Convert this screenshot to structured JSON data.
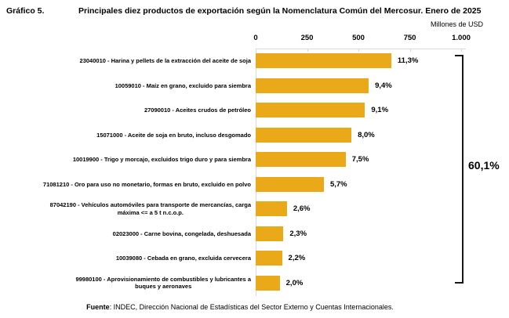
{
  "header": {
    "graphic_label": "Gráfico 5.",
    "title": "Principales diez productos de exportación según la Nomenclatura Común del Mercosur. Enero de 2025"
  },
  "axis": {
    "unit_label": "Millones de USD",
    "ticks": [
      "0",
      "250",
      "500",
      "750",
      "1.000"
    ]
  },
  "chart_data": {
    "type": "bar",
    "orientation": "horizontal",
    "title": "Principales diez productos de exportación según la Nomenclatura Común del Mercosur. Enero de 2025",
    "xlabel": "Millones de USD",
    "xlim": [
      0,
      1000
    ],
    "x_ticks": [
      0,
      250,
      500,
      750,
      1000
    ],
    "grid": false,
    "bars": [
      {
        "label_lines": [
          "23040010 - Harina y pellets de la extracción del aceite de soja"
        ],
        "value_musd_est": 660,
        "percent_label": "11,3%"
      },
      {
        "label_lines": [
          "10059010 - Maíz en grano, excluido para siembra"
        ],
        "value_musd_est": 550,
        "percent_label": "9,4%"
      },
      {
        "label_lines": [
          "27090010 - Aceites crudos de petróleo"
        ],
        "value_musd_est": 532,
        "percent_label": "9,1%"
      },
      {
        "label_lines": [
          "15071000 - Aceite de soja en bruto, incluso desgomado"
        ],
        "value_musd_est": 466,
        "percent_label": "8,0%"
      },
      {
        "label_lines": [
          "10019900 - Trigo y morcajo, excluidos trigo duro y para siembra"
        ],
        "value_musd_est": 438,
        "percent_label": "7,5%"
      },
      {
        "label_lines": [
          "71081210 - Oro para uso no monetario, formas en bruto, excluido en polvo"
        ],
        "value_musd_est": 332,
        "percent_label": "5,7%"
      },
      {
        "label_lines": [
          "87042190 - Vehículos automóviles para transporte de mercancías, carga",
          "máxima <= a 5 t n.c.o.p."
        ],
        "value_musd_est": 152,
        "percent_label": "2,6%"
      },
      {
        "label_lines": [
          "02023000 - Carne bovina, congelada, deshuesada"
        ],
        "value_musd_est": 135,
        "percent_label": "2,3%"
      },
      {
        "label_lines": [
          "10039080 - Cebada en grano, excluida cervecera"
        ],
        "value_musd_est": 128,
        "percent_label": "2,2%"
      },
      {
        "label_lines": [
          "99980100 - Aprovisionamiento de combustibles y lubricantes a",
          "buques y aeronaves"
        ],
        "value_musd_est": 117,
        "percent_label": "2,0%"
      }
    ],
    "share_total_label": "60,1%"
  },
  "footer": {
    "source_bold": "Fuente",
    "source_rest": ": INDEC, Dirección Nacional de Estadísticas del Sector Externo y Cuentas Internacionales."
  },
  "colors": {
    "bar": "#E9A919",
    "axis_line": "#D9D9D9",
    "bracket": "#181818",
    "text": "#000000"
  }
}
